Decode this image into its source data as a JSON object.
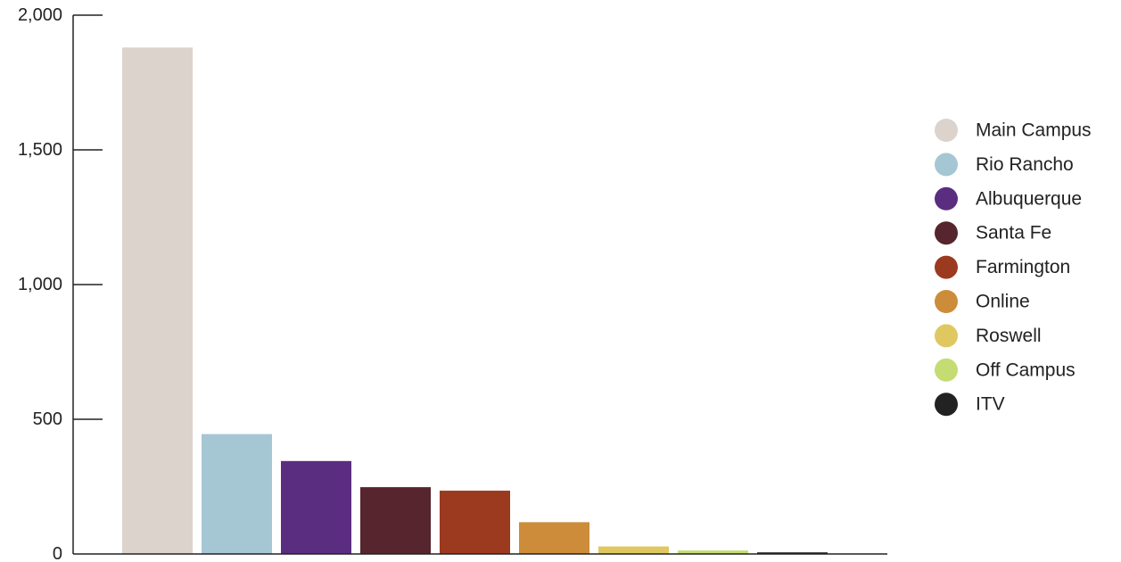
{
  "chart_data": {
    "type": "bar",
    "title": "",
    "xlabel": "",
    "ylabel": "",
    "categories": [
      "Main Campus",
      "Rio Rancho",
      "Albuquerque",
      "Santa Fe",
      "Farmington",
      "Online",
      "Roswell",
      "Off Campus",
      "ITV"
    ],
    "values": [
      1880,
      445,
      345,
      248,
      235,
      118,
      28,
      13,
      6
    ],
    "colors": [
      "#dbd3cc",
      "#a5c7d3",
      "#5b2d80",
      "#56252d",
      "#9c3a1f",
      "#cc8c3a",
      "#e0c861",
      "#c5dc73",
      "#222222"
    ],
    "ylim": [
      0,
      2000
    ],
    "yticks": [
      0,
      500,
      1000,
      1500,
      2000
    ],
    "ytick_labels": [
      "0",
      "500",
      "1,000",
      "1,500",
      "2,000"
    ],
    "grid": false,
    "legend": {
      "position": "right",
      "entries": [
        "Main Campus",
        "Rio Rancho",
        "Albuquerque",
        "Santa Fe",
        "Farmington",
        "Online",
        "Roswell",
        "Off Campus",
        "ITV"
      ]
    }
  }
}
